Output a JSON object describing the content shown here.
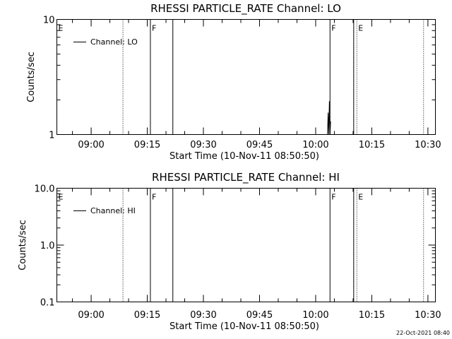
{
  "footer": {
    "timestamp": "22-Oct-2021 08:40"
  },
  "chart_data": [
    {
      "type": "line",
      "title": "RHESSI PARTICLE_RATE Channel: LO",
      "xlabel": "Start Time (10-Nov-11 08:50:50)",
      "ylabel": "Counts/sec",
      "yscale": "log",
      "ylim": [
        1,
        10
      ],
      "yticks": [
        1,
        10
      ],
      "ytick_labels": [
        "1",
        "10"
      ],
      "xlim": [
        "08:50:50",
        "10:32:00"
      ],
      "xticks": [
        "09:00",
        "09:15",
        "09:30",
        "09:45",
        "10:00",
        "10:15",
        "10:30"
      ],
      "grid": false,
      "legend": {
        "placement": "top-left",
        "entries": [
          "Channel: LO"
        ]
      },
      "series": [
        {
          "name": "Channel: LO",
          "x": [
            "10:03:10",
            "10:03:20",
            "10:03:30",
            "10:03:40",
            "10:03:50",
            "10:04:00"
          ],
          "y": [
            1.0,
            1.55,
            1.0,
            1.95,
            1.0,
            1.3
          ]
        }
      ],
      "markers": [
        {
          "time": "08:50:50",
          "style": "solid",
          "label": "E"
        },
        {
          "time": "09:08:30",
          "style": "dotted",
          "label": ""
        },
        {
          "time": "09:15:50",
          "style": "solid",
          "label": "F"
        },
        {
          "time": "09:21:50",
          "style": "solid",
          "label": ""
        },
        {
          "time": "10:03:50",
          "style": "solid",
          "label": "F"
        },
        {
          "time": "10:10:10",
          "style": "solid",
          "label": ""
        },
        {
          "time": "10:11:00",
          "style": "dotted",
          "label": "E"
        },
        {
          "time": "10:28:50",
          "style": "dotted",
          "label": ""
        }
      ]
    },
    {
      "type": "line",
      "title": "RHESSI PARTICLE_RATE Channel: HI",
      "xlabel": "Start Time (10-Nov-11 08:50:50)",
      "ylabel": "Counts/sec",
      "yscale": "log",
      "ylim": [
        0.1,
        10
      ],
      "yticks": [
        0.1,
        1,
        10
      ],
      "ytick_labels": [
        "0.1",
        "1.0",
        "10.0"
      ],
      "xlim": [
        "08:50:50",
        "10:32:00"
      ],
      "xticks": [
        "09:00",
        "09:15",
        "09:30",
        "09:45",
        "10:00",
        "10:15",
        "10:30"
      ],
      "grid": false,
      "legend": {
        "placement": "top-left",
        "entries": [
          "Channel: HI"
        ]
      },
      "series": [
        {
          "name": "Channel: HI",
          "x": [],
          "y": []
        }
      ],
      "markers": [
        {
          "time": "08:50:50",
          "style": "solid",
          "label": "E"
        },
        {
          "time": "09:08:30",
          "style": "dotted",
          "label": ""
        },
        {
          "time": "09:15:50",
          "style": "solid",
          "label": "F"
        },
        {
          "time": "09:21:50",
          "style": "solid",
          "label": ""
        },
        {
          "time": "10:03:50",
          "style": "solid",
          "label": "F"
        },
        {
          "time": "10:10:10",
          "style": "solid",
          "label": ""
        },
        {
          "time": "10:11:00",
          "style": "dotted",
          "label": "E"
        },
        {
          "time": "10:28:50",
          "style": "dotted",
          "label": ""
        }
      ]
    }
  ]
}
